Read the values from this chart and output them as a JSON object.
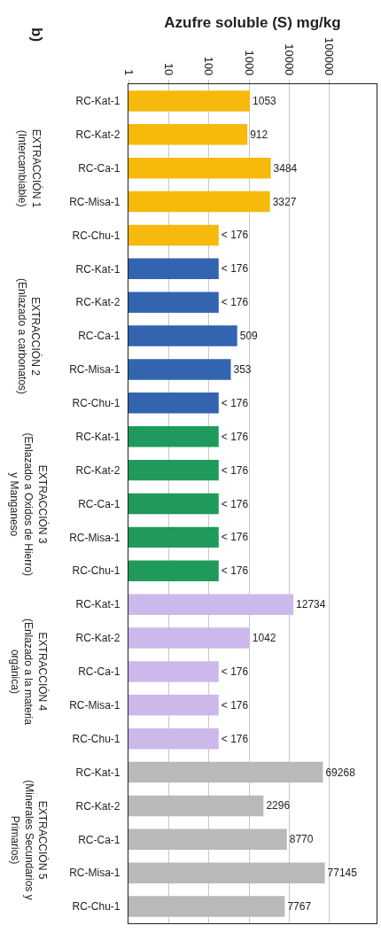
{
  "chart_data": {
    "type": "bar",
    "orientation": "horizontal",
    "log": "x",
    "xlabel": "Azufre soluble (S) mg/kg",
    "categories": [
      "RC-Kat-1",
      "RC-Kat-2",
      "RC-Ca-1",
      "RC-Misa-1",
      "RC-Chu-1",
      "RC-Kat-1",
      "RC-Kat-2",
      "RC-Ca-1",
      "RC-Misa-1",
      "RC-Chu-1",
      "RC-Kat-1",
      "RC-Kat-2",
      "RC-Ca-1",
      "RC-Misa-1",
      "RC-Chu-1",
      "RC-Kat-1",
      "RC-Kat-2",
      "RC-Ca-1",
      "RC-Misa-1",
      "RC-Chu-1",
      "RC-Kat-1",
      "RC-Kat-2",
      "RC-Ca-1",
      "RC-Misa-1",
      "RC-Chu-1"
    ],
    "values": [
      1053,
      912,
      3484,
      3327,
      176,
      176,
      176,
      509,
      353,
      176,
      176,
      176,
      176,
      176,
      176,
      12734,
      1042,
      176,
      176,
      176,
      69268,
      2296,
      8770,
      77145,
      7767
    ],
    "value_labels": [
      "1053",
      "912",
      "3484",
      "3327",
      "< 176",
      "< 176",
      "< 176",
      "509",
      "353",
      "< 176",
      "< 176",
      "< 176",
      "< 176",
      "< 176",
      "< 176",
      "12734",
      "1042",
      "< 176",
      "< 176",
      "< 176",
      "69268",
      "2296",
      "8770",
      "77145",
      "7767"
    ],
    "colors": [
      "#f6b90c",
      "#f6b90c",
      "#f6b90c",
      "#f6b90c",
      "#f6b90c",
      "#3264b0",
      "#3264b0",
      "#3264b0",
      "#3264b0",
      "#3264b0",
      "#1f9a5c",
      "#1f9a5c",
      "#1f9a5c",
      "#1f9a5c",
      "#1f9a5c",
      "#cdb8ec",
      "#cdb8ec",
      "#cdb8ec",
      "#cdb8ec",
      "#cdb8ec",
      "#b9b9b9",
      "#b9b9b9",
      "#b9b9b9",
      "#b9b9b9",
      "#b9b9b9"
    ],
    "xlim": [
      1,
      1500000
    ],
    "xticks": [
      1,
      10,
      100,
      1000,
      10000,
      100000
    ],
    "grid": "x",
    "legend": false,
    "annotations": [
      "b)",
      "EXTRACCIÓN 1\n(Intercambiable)",
      "EXTRACCIÓN 2\n(Enlazado a carbonatos)",
      "EXTRACCIÓN 3\n(Enlazado a Oxidos de Hierro)\ny Manganeso",
      "EXTRACCIÓN 4\n(Enlazado a la materia\norgánica)",
      "EXTRACCIÓN 5\n(Minerales Secundarios y\nPrimarios)"
    ]
  }
}
